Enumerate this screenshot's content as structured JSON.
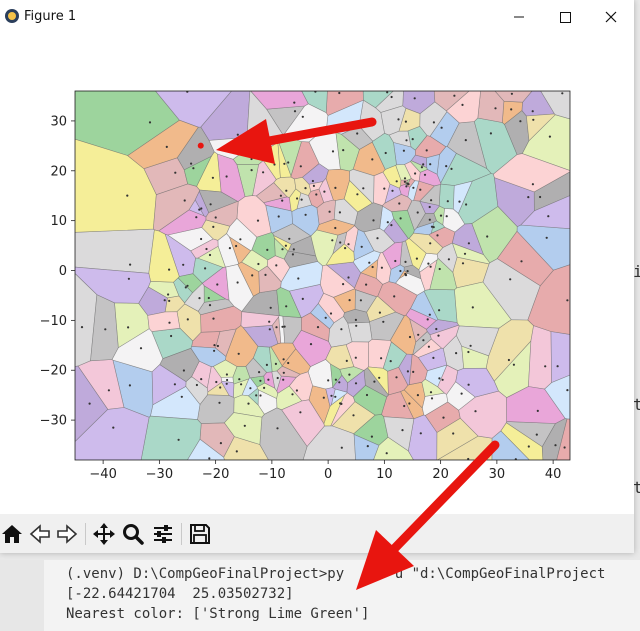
{
  "window": {
    "title": "Figure 1"
  },
  "titlebar": {
    "minimize_icon": "minimize-icon",
    "maximize_icon": "maximize-icon",
    "close_icon": "close-icon"
  },
  "toolbar": {
    "items": [
      "home-icon",
      "back-arrow-icon",
      "forward-arrow-icon",
      "pan-icon",
      "zoom-icon",
      "configure-subplots-icon",
      "save-icon"
    ]
  },
  "terminal": {
    "lines": [
      "(.venv) D:\\CompGeoFinalProject>py     -u \"d:\\CompGeoFinalProject",
      "[-22.64421704  25.03502732]",
      "Nearest color: ['Strong Lime Green']"
    ]
  },
  "colors": {
    "arrow": "#e8150f",
    "highlight_point": "#e8150f"
  },
  "chart_data": {
    "type": "scatter",
    "title": "",
    "xlabel": "",
    "ylabel": "",
    "xlim": [
      -45,
      43
    ],
    "ylim": [
      -38,
      36
    ],
    "xticks": [
      -40,
      -30,
      -20,
      -10,
      0,
      10,
      20,
      30,
      40
    ],
    "yticks": [
      -30,
      -20,
      -10,
      0,
      10,
      20,
      30
    ],
    "xtick_labels": [
      "−40",
      "−30",
      "−20",
      "−10",
      "0",
      "10",
      "20",
      "30",
      "40"
    ],
    "ytick_labels": [
      "−30",
      "−20",
      "−10",
      "0",
      "10",
      "20",
      "30"
    ],
    "highlighted_point": {
      "x": -22.64421704,
      "y": 25.03502732
    },
    "grid": false
  }
}
